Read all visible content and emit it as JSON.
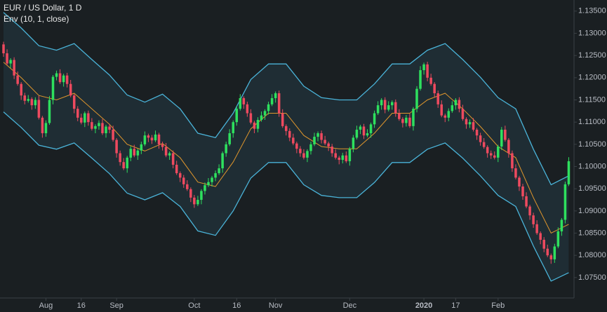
{
  "chart_data": {
    "type": "candlestick",
    "title": "EUR / US Dollar, 1 D",
    "subtitle": "Env (10, 1, close)",
    "up_color": "#2ee05e",
    "down_color": "#ee4a5f",
    "xlim": [
      -1,
      161.5
    ],
    "ylim": [
      1.0704,
      1.1375
    ],
    "xticks": [
      {
        "value": 12,
        "label": "Aug"
      },
      {
        "value": 22,
        "label": "16"
      },
      {
        "value": 32,
        "label": "Sep"
      },
      {
        "value": 54,
        "label": "Oct"
      },
      {
        "value": 66,
        "label": "16"
      },
      {
        "value": 77,
        "label": "Nov"
      },
      {
        "value": 98,
        "label": "Dec"
      },
      {
        "value": 119,
        "label": "2020"
      },
      {
        "value": 128,
        "label": "17"
      },
      {
        "value": 140,
        "label": "Feb"
      }
    ],
    "yticks": [
      {
        "value": 1.075,
        "label": "1.07500"
      },
      {
        "value": 1.08,
        "label": "1.08000"
      },
      {
        "value": 1.085,
        "label": "1.08500"
      },
      {
        "value": 1.09,
        "label": "1.09000"
      },
      {
        "value": 1.095,
        "label": "1.09500"
      },
      {
        "value": 1.1,
        "label": "1.10000"
      },
      {
        "value": 1.105,
        "label": "1.10500"
      },
      {
        "value": 1.11,
        "label": "1.11000"
      },
      {
        "value": 1.115,
        "label": "1.11500"
      },
      {
        "value": 1.12,
        "label": "1.12000"
      },
      {
        "value": 1.125,
        "label": "1.12500"
      },
      {
        "value": 1.13,
        "label": "1.13000"
      },
      {
        "value": 1.135,
        "label": "1.13500"
      }
    ],
    "open": [
      1.1275,
      1.1255,
      1.1232,
      1.124,
      1.1205,
      1.1186,
      1.116,
      1.1148,
      1.1152,
      1.1138,
      1.115,
      1.111,
      1.1075,
      1.1098,
      1.115,
      1.1202,
      1.121,
      1.119,
      1.1205,
      1.1186,
      1.116,
      1.113,
      1.111,
      1.1099,
      1.112,
      1.11,
      1.1085,
      1.1091,
      1.1098,
      1.1075,
      1.109,
      1.1083,
      1.106,
      1.103,
      1.101,
      1.0996,
      1.102,
      1.104,
      1.1025,
      1.1036,
      1.105,
      1.107,
      1.1065,
      1.1059,
      1.1072,
      1.105,
      1.1044,
      1.1025,
      1.103,
      1.1004,
      1.0985,
      1.0975,
      1.096,
      1.0949,
      1.093,
      1.0915,
      1.0925,
      1.0945,
      1.0958,
      1.0965,
      1.0975,
      1.0985,
      1.0996,
      1.103,
      1.105,
      1.1075,
      1.11,
      1.113,
      1.1154,
      1.114,
      1.112,
      1.1099,
      1.1085,
      1.1105,
      1.1115,
      1.1125,
      1.114,
      1.1154,
      1.1165,
      1.112,
      1.1091,
      1.108,
      1.1065,
      1.1052,
      1.104,
      1.103,
      1.102,
      1.1035,
      1.105,
      1.1067,
      1.1075,
      1.106,
      1.1052,
      1.1045,
      1.103,
      1.102,
      1.1015,
      1.1025,
      1.1012,
      1.104,
      1.1065,
      1.1083,
      1.109,
      1.107,
      1.1075,
      1.1095,
      1.112,
      1.1138,
      1.115,
      1.1128,
      1.1138,
      1.1145,
      1.112,
      1.1107,
      1.1098,
      1.111,
      1.1091,
      1.113,
      1.1175,
      1.1217,
      1.123,
      1.12,
      1.1186,
      1.1165,
      1.114,
      1.1115,
      1.111,
      1.1125,
      1.1138,
      1.115,
      1.113,
      1.1107,
      1.1095,
      1.11,
      1.1083,
      1.107,
      1.1055,
      1.1044,
      1.103,
      1.1025,
      1.102,
      1.1045,
      1.1083,
      1.106,
      1.103,
      1.0996,
      1.0975,
      1.0955,
      1.0933,
      1.091,
      1.089,
      1.087,
      1.085,
      1.0835,
      1.0815,
      1.08,
      1.0791,
      1.082,
      1.0854,
      1.088,
      1.096
    ],
    "high": [
      1.1281,
      1.1264,
      1.1244,
      1.1246,
      1.1214,
      1.119,
      1.1166,
      1.1161,
      1.1156,
      1.1156,
      1.1159,
      1.1114,
      1.1104,
      1.1159,
      1.1206,
      1.1216,
      1.1219,
      1.1209,
      1.1211,
      1.1195,
      1.1164,
      1.1136,
      1.1119,
      1.1124,
      1.1126,
      1.1109,
      1.1095,
      1.1104,
      1.1107,
      1.1094,
      1.1096,
      1.1092,
      1.1064,
      1.1036,
      1.1019,
      1.1024,
      1.1046,
      1.1049,
      1.104,
      1.1056,
      1.1079,
      1.1074,
      1.1071,
      1.1081,
      1.1076,
      1.1056,
      1.1053,
      1.1034,
      1.1036,
      1.1013,
      1.0989,
      1.0981,
      1.0969,
      1.0953,
      1.0936,
      1.0934,
      1.0949,
      1.0964,
      1.0974,
      1.0979,
      1.0991,
      1.1005,
      1.1034,
      1.1056,
      1.1084,
      1.1104,
      1.1136,
      1.1163,
      1.1158,
      1.1146,
      1.1129,
      1.1103,
      1.1111,
      1.1124,
      1.1129,
      1.1146,
      1.1163,
      1.1169,
      1.1171,
      1.1129,
      1.1095,
      1.1086,
      1.1074,
      1.1056,
      1.1046,
      1.1039,
      1.1039,
      1.1056,
      1.1076,
      1.1079,
      1.1081,
      1.1069,
      1.1056,
      1.1051,
      1.1039,
      1.1024,
      1.1031,
      1.1034,
      1.1044,
      1.1071,
      1.1092,
      1.1094,
      1.1096,
      1.1084,
      1.1099,
      1.1126,
      1.1147,
      1.1154,
      1.1156,
      1.1147,
      1.1149,
      1.1151,
      1.1129,
      1.1111,
      1.1116,
      1.1119,
      1.1134,
      1.1181,
      1.1226,
      1.1234,
      1.1236,
      1.1209,
      1.119,
      1.1171,
      1.1149,
      1.1119,
      1.1131,
      1.1147,
      1.1154,
      1.1156,
      1.1139,
      1.1111,
      1.1106,
      1.1109,
      1.1087,
      1.1076,
      1.1064,
      1.1048,
      1.1036,
      1.1034,
      1.1049,
      1.1089,
      1.1092,
      1.1064,
      1.1036,
      1.1005,
      1.0979,
      1.0961,
      1.0942,
      1.0914,
      1.0896,
      1.0879,
      1.0854,
      1.0841,
      1.0824,
      1.0804,
      1.0826,
      1.0863,
      1.0884,
      1.0966,
      1.1021
    ],
    "low": [
      1.1247,
      1.1228,
      1.1222,
      1.1197,
      1.1182,
      1.115,
      1.114,
      1.1144,
      1.1128,
      1.113,
      1.1106,
      1.1065,
      1.1067,
      1.1094,
      1.114,
      1.1194,
      1.1186,
      1.118,
      1.1178,
      1.1156,
      1.112,
      1.1102,
      1.1095,
      1.1089,
      1.1092,
      1.1081,
      1.1075,
      1.1083,
      1.1071,
      1.1065,
      1.1075,
      1.1056,
      1.102,
      1.1002,
      1.0992,
      1.0986,
      1.1012,
      1.1021,
      1.1015,
      1.1028,
      1.1046,
      1.1055,
      1.1051,
      1.1055,
      1.104,
      1.1036,
      1.1021,
      1.1015,
      1.0996,
      1.0981,
      1.0965,
      1.0952,
      1.0945,
      1.092,
      1.0907,
      1.0911,
      1.0915,
      1.0937,
      1.0954,
      1.0955,
      1.0967,
      1.0981,
      1.0986,
      1.1022,
      1.1046,
      1.1065,
      1.1092,
      1.1126,
      1.113,
      1.1112,
      1.1095,
      1.1075,
      1.1077,
      1.1101,
      1.1105,
      1.1117,
      1.1136,
      1.1144,
      1.1112,
      1.1087,
      1.107,
      1.1057,
      1.1048,
      1.103,
      1.1022,
      1.1016,
      1.101,
      1.1027,
      1.1046,
      1.1057,
      1.1052,
      1.1048,
      1.1035,
      1.1022,
      1.1016,
      1.1005,
      1.1007,
      1.1008,
      1.1002,
      1.1032,
      1.1061,
      1.1073,
      1.1062,
      1.1066,
      1.1065,
      1.1087,
      1.1116,
      1.1128,
      1.112,
      1.1124,
      1.1128,
      1.1112,
      1.1103,
      1.1088,
      1.109,
      1.1087,
      1.1081,
      1.1122,
      1.1171,
      1.1207,
      1.1192,
      1.1182,
      1.1155,
      1.1132,
      1.1111,
      1.11,
      1.1102,
      1.1121,
      1.1128,
      1.1122,
      1.1103,
      1.1085,
      1.1087,
      1.1079,
      1.106,
      1.1047,
      1.104,
      1.102,
      1.1017,
      1.1016,
      1.101,
      1.1037,
      1.1056,
      1.102,
      1.0988,
      1.0971,
      1.0945,
      1.0925,
      1.0906,
      1.088,
      1.0862,
      1.0846,
      1.0825,
      1.0807,
      1.0796,
      1.0781,
      1.0783,
      1.0816,
      1.0844,
      1.0872,
      1.0956
    ],
    "close": [
      1.1255,
      1.1232,
      1.124,
      1.1205,
      1.1186,
      1.116,
      1.1148,
      1.1152,
      1.1138,
      1.115,
      1.111,
      1.1075,
      1.1098,
      1.115,
      1.1202,
      1.121,
      1.119,
      1.1205,
      1.1186,
      1.116,
      1.113,
      1.111,
      1.1099,
      1.112,
      1.11,
      1.1085,
      1.1091,
      1.1098,
      1.1075,
      1.109,
      1.1083,
      1.106,
      1.103,
      1.101,
      1.0996,
      1.102,
      1.104,
      1.1025,
      1.1036,
      1.105,
      1.107,
      1.1065,
      1.1059,
      1.1072,
      1.105,
      1.1044,
      1.1025,
      1.103,
      1.1004,
      1.0985,
      1.0975,
      1.096,
      1.0949,
      1.093,
      1.0915,
      1.0925,
      1.0945,
      1.0958,
      1.0965,
      1.0975,
      1.0985,
      1.0996,
      1.103,
      1.105,
      1.1075,
      1.11,
      1.113,
      1.1154,
      1.114,
      1.112,
      1.1099,
      1.1085,
      1.1105,
      1.1115,
      1.1125,
      1.114,
      1.1154,
      1.1165,
      1.112,
      1.1091,
      1.108,
      1.1065,
      1.1052,
      1.104,
      1.103,
      1.102,
      1.1035,
      1.105,
      1.1067,
      1.1075,
      1.106,
      1.1052,
      1.1045,
      1.103,
      1.102,
      1.1015,
      1.1025,
      1.1012,
      1.104,
      1.1065,
      1.1083,
      1.109,
      1.107,
      1.1075,
      1.1095,
      1.112,
      1.1138,
      1.115,
      1.1128,
      1.1138,
      1.1145,
      1.112,
      1.1107,
      1.1098,
      1.111,
      1.1091,
      1.113,
      1.1175,
      1.1217,
      1.123,
      1.12,
      1.1186,
      1.1165,
      1.114,
      1.1115,
      1.111,
      1.1125,
      1.1138,
      1.115,
      1.113,
      1.1107,
      1.1095,
      1.11,
      1.1083,
      1.107,
      1.1055,
      1.1044,
      1.103,
      1.1025,
      1.102,
      1.1045,
      1.1083,
      1.106,
      1.103,
      1.0996,
      1.0975,
      1.0955,
      1.0933,
      1.091,
      1.089,
      1.087,
      1.085,
      1.0835,
      1.0815,
      1.08,
      1.0791,
      1.082,
      1.0854,
      1.088,
      1.096,
      1.1012
    ],
    "envelope": {
      "band_color": "#4ab3d8",
      "basis_color": "#e0962c",
      "x": [
        0,
        5,
        10,
        15,
        20,
        25,
        30,
        35,
        40,
        45,
        50,
        55,
        60,
        65,
        70,
        75,
        80,
        85,
        90,
        95,
        100,
        105,
        110,
        115,
        120,
        125,
        130,
        135,
        140,
        145,
        150,
        155,
        160
      ],
      "basis": [
        1.1235,
        1.12,
        1.116,
        1.115,
        1.1165,
        1.113,
        1.1095,
        1.105,
        1.1035,
        1.1052,
        1.102,
        1.0965,
        1.0955,
        1.101,
        1.1085,
        1.112,
        1.112,
        1.107,
        1.1045,
        1.104,
        1.104,
        1.1075,
        1.112,
        1.112,
        1.115,
        1.1165,
        1.113,
        1.109,
        1.1045,
        1.102,
        1.093,
        1.085,
        1.087
      ],
      "upper": [
        1.1347,
        1.1312,
        1.1272,
        1.1262,
        1.1277,
        1.1241,
        1.1206,
        1.1161,
        1.1145,
        1.1163,
        1.113,
        1.1075,
        1.1065,
        1.112,
        1.1196,
        1.1231,
        1.1231,
        1.1181,
        1.1155,
        1.115,
        1.115,
        1.1186,
        1.1231,
        1.1231,
        1.1262,
        1.1277,
        1.1241,
        1.1201,
        1.1155,
        1.113,
        1.1039,
        1.0959,
        1.0979
      ],
      "lower": [
        1.1123,
        1.1088,
        1.1048,
        1.1039,
        1.1053,
        1.1019,
        1.0984,
        1.094,
        1.0925,
        1.0941,
        1.091,
        1.0855,
        1.0845,
        1.09,
        1.0974,
        1.1009,
        1.1009,
        1.0959,
        1.0935,
        1.093,
        1.093,
        1.0964,
        1.1009,
        1.1009,
        1.1039,
        1.1053,
        1.1019,
        1.0979,
        1.0935,
        1.091,
        1.0821,
        1.0742,
        1.0761
      ]
    }
  }
}
